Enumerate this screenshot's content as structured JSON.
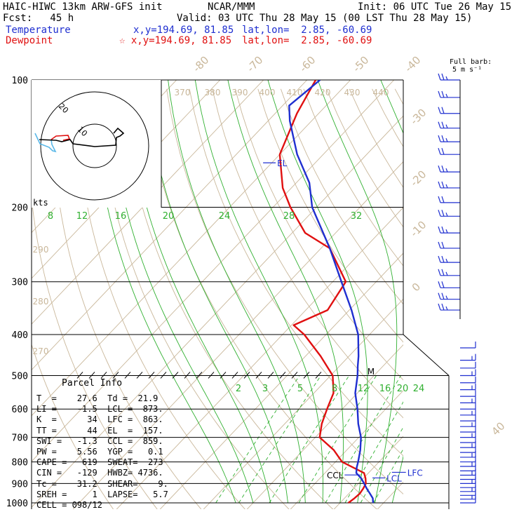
{
  "header": {
    "model": "HAIC-HIWC 13km ARW-GFS init",
    "org": "NCAR/MMM",
    "init": "Init: 06 UTC Tue 26 May 15",
    "fcst": "Fcst:   45 h",
    "valid": "Valid: 03 UTC Thu 28 May 15 (00 LST Thu 28 May 15)",
    "temp_label": "Temperature",
    "temp_xy": "x,y=194.69, 81.85",
    "temp_latlon": "lat,lon=  2.85, -60.69",
    "dew_label": "Dewpoint",
    "dew_xy": "☆ x,y=194.69, 81.85",
    "dew_latlon": "lat,lon=  2.85, -60.69",
    "barb_key_1": "Full barb:",
    "barb_key_2": "5 m s⁻¹"
  },
  "colors": {
    "temperature": "#1f2fd0",
    "dewpoint": "#e01010",
    "isotherm": "#c9b79a",
    "dry_adiabat": "#c9b79a",
    "moist_adiabat": "#30b030",
    "mixing_ratio": "#30b030",
    "isobar": "#000000",
    "wind_barb": "#1f2fd0"
  },
  "chart_data": {
    "type": "line",
    "title": "",
    "y_axis": "pressure",
    "pressure_levels": [
      100,
      200,
      300,
      400,
      500,
      600,
      700,
      800,
      900,
      1000
    ],
    "isotherm_labels": [
      40,
      30,
      20,
      10,
      0,
      -10,
      -20,
      -30,
      -40,
      -50,
      -60,
      -70,
      -80
    ],
    "theta_labels": [
      270,
      280,
      290,
      370,
      380,
      390,
      400,
      410,
      420,
      430,
      440
    ],
    "moist_labels_upper": [
      8,
      12,
      16,
      20,
      24,
      28,
      32
    ],
    "mixing_ratio_labels": [
      2,
      3,
      5,
      8,
      12,
      16,
      20,
      24
    ],
    "series": [
      {
        "name": "Temperature",
        "points": [
          [
            1000,
            27.6
          ],
          [
            975,
            26.5
          ],
          [
            950,
            24.8
          ],
          [
            925,
            23.0
          ],
          [
            900,
            21.3
          ],
          [
            875,
            19.5
          ],
          [
            850,
            17.2
          ],
          [
            825,
            16.1
          ],
          [
            800,
            15.2
          ],
          [
            750,
            13.1
          ],
          [
            700,
            10.5
          ],
          [
            650,
            6.9
          ],
          [
            600,
            3.5
          ],
          [
            550,
            -0.5
          ],
          [
            500,
            -3.8
          ],
          [
            475,
            -5.8
          ],
          [
            450,
            -7.8
          ],
          [
            400,
            -12.6
          ],
          [
            350,
            -19.5
          ],
          [
            300,
            -28.0
          ],
          [
            250,
            -38.0
          ],
          [
            200,
            -51.0
          ],
          [
            175,
            -57.0
          ],
          [
            150,
            -66.0
          ],
          [
            125,
            -75.0
          ],
          [
            115,
            -78.5
          ],
          [
            100,
            -77.0
          ]
        ]
      },
      {
        "name": "Dewpoint",
        "points": [
          [
            1000,
            21.9
          ],
          [
            975,
            22.3
          ],
          [
            950,
            22.5
          ],
          [
            925,
            22.2
          ],
          [
            900,
            21.7
          ],
          [
            875,
            20.5
          ],
          [
            850,
            19.0
          ],
          [
            800,
            11.5
          ],
          [
            750,
            7.0
          ],
          [
            700,
            1.0
          ],
          [
            650,
            -1.5
          ],
          [
            600,
            -3.5
          ],
          [
            550,
            -5.5
          ],
          [
            500,
            -9.5
          ],
          [
            450,
            -16.5
          ],
          [
            400,
            -25.0
          ],
          [
            380,
            -29.5
          ],
          [
            350,
            -25.0
          ],
          [
            300,
            -27.0
          ],
          [
            250,
            -38.0
          ],
          [
            230,
            -47.0
          ],
          [
            200,
            -56.0
          ],
          [
            180,
            -62.0
          ],
          [
            150,
            -70.0
          ],
          [
            120,
            -75.0
          ],
          [
            100,
            -78.0
          ]
        ]
      }
    ],
    "level_markers": [
      {
        "label": "EL",
        "p": 157
      },
      {
        "label": "CCL",
        "p": 859
      },
      {
        "label": "LCL",
        "p": 873
      },
      {
        "label": "LFC",
        "p": 863
      },
      {
        "label": "M",
        "p": 490
      }
    ],
    "wind_barbs": {
      "pressures": [
        100,
        110,
        120,
        130,
        140,
        150,
        165,
        180,
        195,
        210,
        230,
        250,
        270,
        290,
        310,
        330,
        350,
        430,
        460,
        480,
        500,
        520,
        540,
        560,
        580,
        600,
        620,
        640,
        660,
        680,
        700,
        720,
        740,
        760,
        780,
        800,
        820,
        840,
        860,
        880,
        900,
        920,
        940,
        960,
        980,
        1000
      ],
      "flag_style": [
        "east",
        "east",
        "east",
        "east",
        "east",
        "east",
        "east",
        "east",
        "east",
        "east",
        "east",
        "east",
        "east",
        "east",
        "east",
        "east",
        "east",
        "west",
        "west",
        "west",
        "west",
        "west",
        "west",
        "west",
        "west",
        "west",
        "west",
        "west",
        "west",
        "west",
        "west",
        "west",
        "west",
        "west",
        "west",
        "west",
        "west",
        "west",
        "west",
        "west",
        "west",
        "west",
        "west",
        "west",
        "west",
        "west"
      ]
    },
    "hodograph": {
      "ring_labels": [
        "10",
        "20"
      ],
      "unit": "kts"
    }
  },
  "parcel_info": {
    "title": "Parcel Info",
    "rows": [
      "T  =    27.6  Td =  21.9",
      "LI =    -1.5  LCL =  873.",
      "K  =      34  LFC =  863.",
      "TT =      44  EL  =  157.",
      "SWI =   -1.3  CCL =  859.",
      "PW =    5.56  YGP =   0.1",
      "CAPE =   619  SWEAT=  273",
      "CIN =   -129  HWBZ= 4736.",
      "Tc =    31.2  SHEAR=    9.",
      "SREH =     1  LAPSE=   5.7",
      "CELL = 098/12"
    ]
  }
}
